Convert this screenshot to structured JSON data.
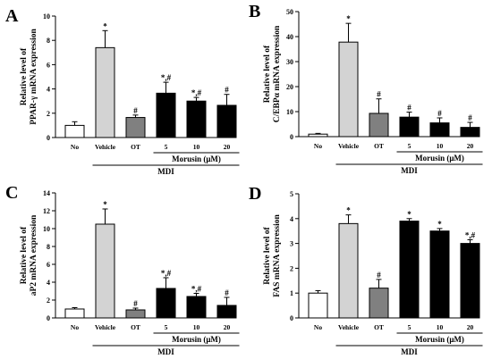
{
  "figure": {
    "group_label": "MDI",
    "morusin_label": "Morusin  (μM)",
    "categories": [
      "No",
      "Vehicle",
      "OT",
      "5",
      "10",
      "20"
    ]
  },
  "chart_data": [
    {
      "panel": "A",
      "type": "bar",
      "ylabel": [
        "Relative level of",
        "PPAR-γ mRNA expression"
      ],
      "categories": [
        "No",
        "Vehicle",
        "OT",
        "5",
        "10",
        "20"
      ],
      "values": [
        1.0,
        7.4,
        1.65,
        3.65,
        3.0,
        2.65
      ],
      "errors": [
        0.3,
        1.4,
        0.2,
        0.9,
        0.3,
        0.9
      ],
      "annotations": [
        "",
        "*",
        "#",
        "*,#",
        "*,#",
        "#"
      ],
      "fills": [
        "#ffffff",
        "#d3d3d3",
        "#808080",
        "#000000",
        "#000000",
        "#000000"
      ],
      "ylim": [
        0,
        10
      ],
      "ticks": [
        0,
        2,
        4,
        6,
        8,
        10
      ],
      "tick_labels": [
        "0",
        "2",
        "4",
        "6",
        "8",
        "10"
      ]
    },
    {
      "panel": "B",
      "type": "bar",
      "ylabel": [
        "Relative level of",
        "C/EBPα mRNA expression"
      ],
      "categories": [
        "No",
        "Vehicle",
        "OT",
        "5",
        "10",
        "20"
      ],
      "values": [
        1.0,
        37.8,
        9.3,
        7.8,
        5.5,
        3.7
      ],
      "errors": [
        0.3,
        7.5,
        5.8,
        2.0,
        2.0,
        2.0
      ],
      "annotations": [
        "",
        "*",
        "#",
        "#",
        "#",
        "#"
      ],
      "fills": [
        "#ffffff",
        "#d3d3d3",
        "#808080",
        "#000000",
        "#000000",
        "#000000"
      ],
      "ylim": [
        0,
        50
      ],
      "ticks": [
        0,
        10,
        20,
        30,
        40,
        50
      ],
      "tick_labels": [
        "0",
        "10",
        "20",
        "30",
        "40",
        "50"
      ]
    },
    {
      "panel": "C",
      "type": "bar",
      "ylabel": [
        "Relative level of",
        "aP2 mRNA expression"
      ],
      "categories": [
        "No",
        "Vehicle",
        "OT",
        "5",
        "10",
        "20"
      ],
      "values": [
        1.0,
        10.5,
        0.9,
        3.3,
        2.4,
        1.4
      ],
      "errors": [
        0.15,
        1.7,
        0.2,
        1.2,
        0.35,
        0.9
      ],
      "annotations": [
        "",
        "*",
        "#",
        "*,#",
        "*,#",
        "#"
      ],
      "fills": [
        "#ffffff",
        "#d3d3d3",
        "#808080",
        "#000000",
        "#000000",
        "#000000"
      ],
      "ylim": [
        0,
        14
      ],
      "ticks": [
        0,
        2,
        4,
        6,
        8,
        10,
        12,
        14
      ],
      "tick_labels": [
        "0",
        "2",
        "4",
        "6",
        "8",
        "10",
        "12",
        "14"
      ]
    },
    {
      "panel": "D",
      "type": "bar",
      "ylabel": [
        "Relative level of",
        "FAS mRNA expression"
      ],
      "categories": [
        "No",
        "Vehicle",
        "OT",
        "5",
        "10",
        "20"
      ],
      "values": [
        1.0,
        3.8,
        1.2,
        3.9,
        3.5,
        3.0
      ],
      "errors": [
        0.1,
        0.35,
        0.35,
        0.1,
        0.1,
        0.15
      ],
      "annotations": [
        "",
        "*",
        "#",
        "*",
        "*",
        "*,#"
      ],
      "fills": [
        "#ffffff",
        "#d3d3d3",
        "#808080",
        "#000000",
        "#000000",
        "#000000"
      ],
      "ylim": [
        0,
        5
      ],
      "ticks": [
        0,
        1,
        2,
        3,
        4,
        5
      ],
      "tick_labels": [
        "0",
        "1",
        "2",
        "3",
        "4",
        "5"
      ]
    }
  ]
}
